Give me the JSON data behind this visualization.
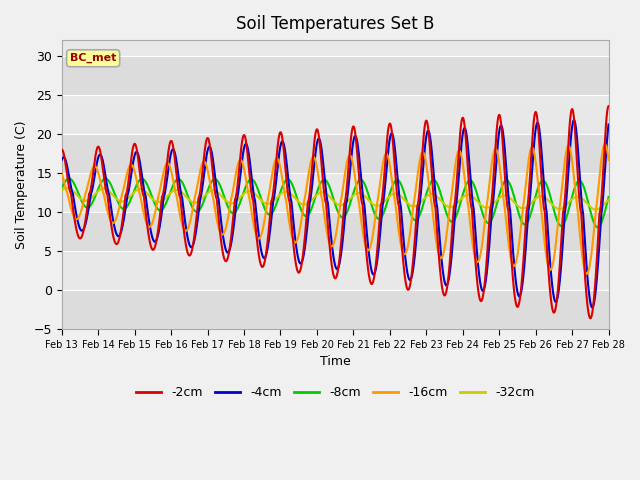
{
  "title": "Soil Temperatures Set B",
  "xlabel": "Time",
  "ylabel": "Soil Temperature (C)",
  "ylim": [
    -5,
    32
  ],
  "yticks": [
    -5,
    0,
    5,
    10,
    15,
    20,
    25,
    30
  ],
  "annotation": "BC_met",
  "fig_bg_color": "#f0f0f0",
  "plot_bg_color": "#e8e8e8",
  "series_colors": {
    "-2cm": "#dd0000",
    "-4cm": "#0000cc",
    "-8cm": "#00cc00",
    "-16cm": "#ff9900",
    "-32cm": "#cccc00"
  },
  "band_colors": [
    "#dcdcdc",
    "#e8e8e8"
  ],
  "line_width": 1.5,
  "n_days": 15,
  "n_pts": 3600
}
